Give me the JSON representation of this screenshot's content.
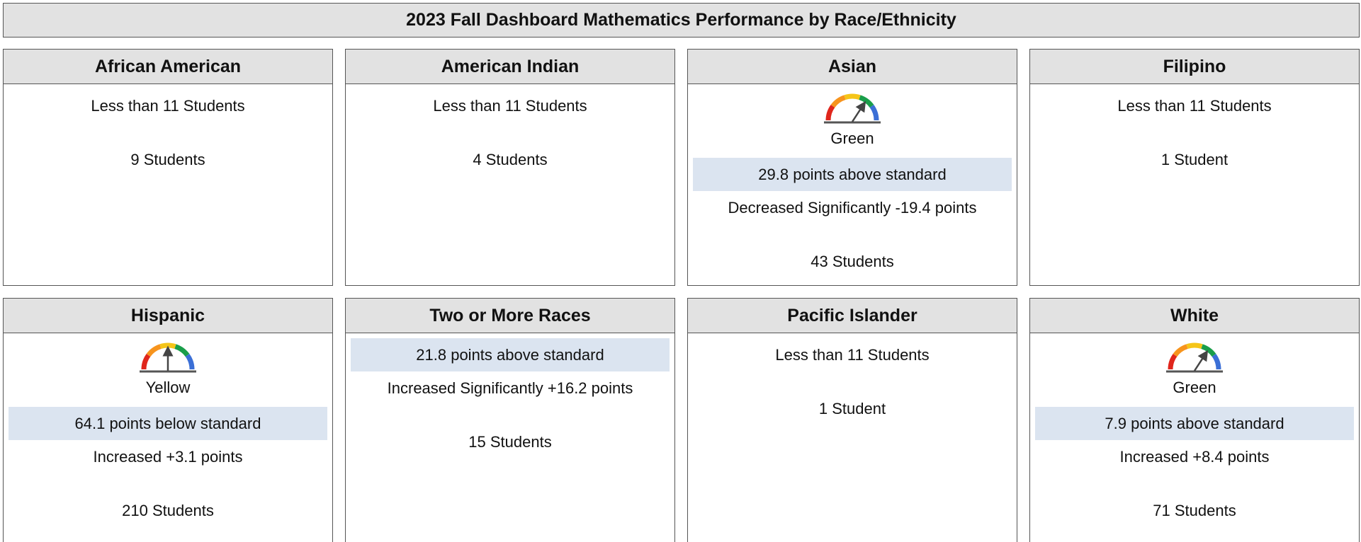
{
  "header": {
    "title": "2023 Fall Dashboard Mathematics Performance by Race/Ethnicity"
  },
  "cards": [
    {
      "name": "African American",
      "note": "Less than 11 Students",
      "students": "9 Students"
    },
    {
      "name": "American Indian",
      "note": "Less than 11 Students",
      "students": "4 Students"
    },
    {
      "name": "Asian",
      "status": "Green",
      "distance": "29.8 points above standard",
      "change": "Decreased Significantly -19.4 points",
      "students": "43 Students"
    },
    {
      "name": "Filipino",
      "note": "Less than 11 Students",
      "students": "1 Student"
    },
    {
      "name": "Hispanic",
      "status": "Yellow",
      "distance": "64.1 points below standard",
      "change": "Increased +3.1 points",
      "students": "210 Students"
    },
    {
      "name": "Two or More Races",
      "distance": "21.8 points above standard",
      "change": "Increased Significantly +16.2 points",
      "students": "15 Students"
    },
    {
      "name": "Pacific Islander",
      "note": "Less than 11 Students",
      "students": "1 Student"
    },
    {
      "name": "White",
      "status": "Green",
      "distance": "7.9 points above standard",
      "change": "Increased +8.4 points",
      "students": "71 Students"
    }
  ]
}
